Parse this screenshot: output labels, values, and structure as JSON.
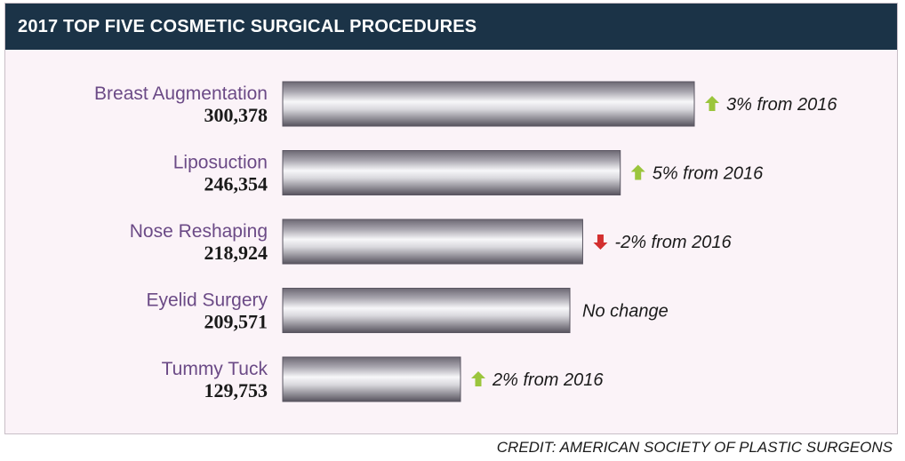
{
  "header": {
    "title": "2017 TOP FIVE COSMETIC SURGICAL PROCEDURES"
  },
  "credit": "CREDIT: AMERICAN SOCIETY OF PLASTIC SURGEONS",
  "colors": {
    "header_bg": "#1b3347",
    "panel_bg": "#fbf3f8",
    "label_purple": "#6b4a86",
    "arrow_up": "#9bc53d",
    "arrow_down": "#d32f2f"
  },
  "chart_data": {
    "type": "bar",
    "orientation": "horizontal",
    "title": "2017 TOP FIVE COSMETIC SURGICAL PROCEDURES",
    "categories": [
      "Breast Augmentation",
      "Liposuction",
      "Nose Reshaping",
      "Eyelid Surgery",
      "Tummy Tuck"
    ],
    "values": [
      300378,
      246354,
      218924,
      209571,
      129753
    ],
    "value_labels": [
      "300,378",
      "246,354",
      "218,924",
      "209,571",
      "129,753"
    ],
    "annotations": [
      {
        "text": "3% from 2016",
        "icon": "arrow-up-icon"
      },
      {
        "text": "5% from 2016",
        "icon": "arrow-up-icon"
      },
      {
        "text": "-2% from 2016",
        "icon": "arrow-down-icon"
      },
      {
        "text": "No change",
        "icon": ""
      },
      {
        "text": "2% from 2016",
        "icon": "arrow-up-icon"
      }
    ],
    "xlim": [
      0,
      300378
    ],
    "grid": false,
    "legend": "none"
  }
}
